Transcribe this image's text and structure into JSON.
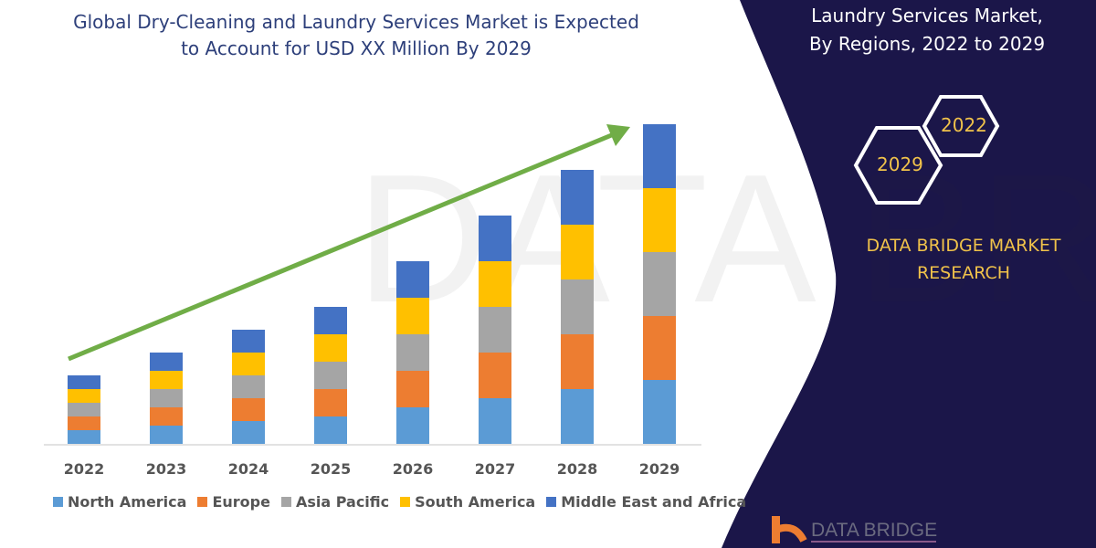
{
  "header": {
    "title_line1": "Global Dry-Cleaning and Laundry Services  Market is Expected",
    "title_line2": "to Account for USD XX Million By 2029"
  },
  "side_panel": {
    "title_line1": "Laundry Services  Market,",
    "title_line2": "By Regions, 2022 to 2029",
    "hex_2022": "2022",
    "hex_2029": "2029",
    "brand_line1": "DATA BRIDGE MARKET",
    "brand_line2": "RESEARCH",
    "logo_text": "DATA BRIDGE",
    "panel_color": "#1b1649",
    "accent_color": "#f0c24a"
  },
  "chart_data": {
    "type": "bar",
    "stacked": true,
    "categories": [
      "2022",
      "2023",
      "2024",
      "2025",
      "2026",
      "2027",
      "2028",
      "2029"
    ],
    "series": [
      {
        "name": "North America",
        "color": "#5b9bd5",
        "values": [
          15,
          20,
          25,
          30,
          40,
          50,
          60,
          70
        ]
      },
      {
        "name": "Europe",
        "color": "#ed7d31",
        "values": [
          15,
          20,
          25,
          30,
          40,
          50,
          60,
          70
        ]
      },
      {
        "name": "Asia Pacific",
        "color": "#a5a5a5",
        "values": [
          15,
          20,
          25,
          30,
          40,
          50,
          60,
          70
        ]
      },
      {
        "name": "South America",
        "color": "#ffc000",
        "values": [
          15,
          20,
          25,
          30,
          40,
          50,
          60,
          70
        ]
      },
      {
        "name": "Middle East and Africa",
        "color": "#4472c4",
        "values": [
          15,
          20,
          25,
          30,
          40,
          50,
          60,
          70
        ]
      }
    ],
    "y_axis_shown": false,
    "grid": false,
    "legend": "bottom",
    "trend_arrow_color": "#70ad47"
  }
}
